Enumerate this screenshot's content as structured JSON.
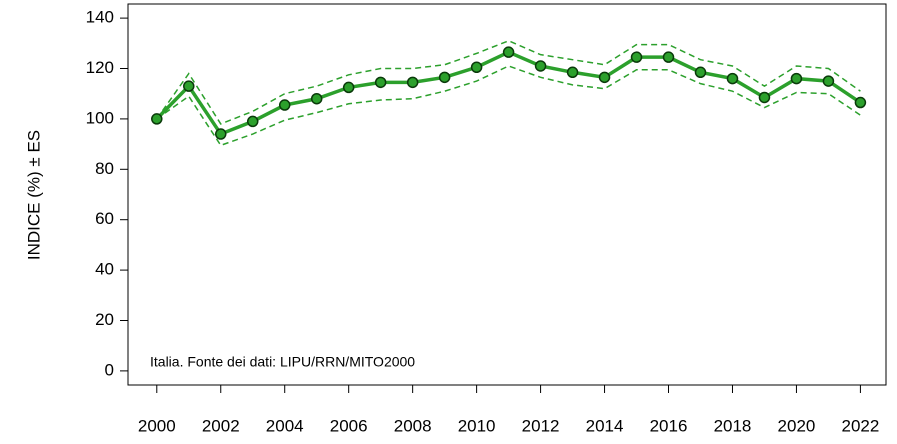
{
  "chart_data": {
    "type": "line",
    "ylabel": "INDICE (%) ± ES",
    "annotation": "Italia. Fonte dei dati: LIPU/RRN/MITO2000",
    "x": [
      2000,
      2001,
      2002,
      2003,
      2004,
      2005,
      2006,
      2007,
      2008,
      2009,
      2010,
      2011,
      2012,
      2013,
      2014,
      2015,
      2016,
      2017,
      2018,
      2019,
      2020,
      2021,
      2022
    ],
    "series": [
      {
        "color": "#2ca02c",
        "dash": true,
        "markers": false,
        "values": [
          100,
          118,
          98,
          103,
          110,
          113,
          117.5,
          120,
          120,
          121.5,
          126,
          131,
          125.5,
          123.5,
          121.5,
          129.5,
          129.5,
          123.5,
          121,
          113,
          121,
          120,
          111
        ]
      },
      {
        "color": "#2ca02c",
        "dash": true,
        "markers": false,
        "values": [
          100,
          109,
          89.5,
          94,
          99.5,
          102.5,
          106,
          107.5,
          108,
          111,
          115,
          121,
          116.5,
          113.5,
          112,
          119.5,
          119.5,
          114,
          111,
          104.5,
          110.5,
          110,
          101.5
        ]
      },
      {
        "color": "#2ca02c",
        "dash": false,
        "markers": true,
        "values": [
          100,
          113,
          94,
          99,
          105.5,
          108,
          112.5,
          114.5,
          114.5,
          116.5,
          120.5,
          126.5,
          121,
          118.5,
          116.5,
          124.5,
          124.5,
          118.5,
          116,
          108.5,
          116,
          115,
          106.5
        ]
      }
    ],
    "xlim": [
      1999.1,
      2022.8
    ],
    "xticks": [
      2000,
      2002,
      2004,
      2006,
      2008,
      2010,
      2012,
      2014,
      2016,
      2018,
      2020,
      2022
    ],
    "ylim": [
      -5.6,
      145.6
    ],
    "yticks": [
      0,
      20,
      40,
      60,
      80,
      100,
      120,
      140
    ],
    "grid": false
  }
}
